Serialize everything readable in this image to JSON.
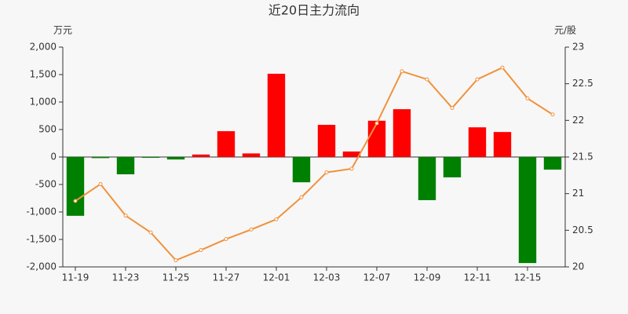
{
  "chart_data": {
    "type": "bar-line",
    "title": "近20日主力流向",
    "y_label": "万元",
    "y2_label": "元/股",
    "categories": [
      "11-19",
      null,
      "11-23",
      null,
      "11-25",
      null,
      "11-27",
      null,
      "12-01",
      null,
      "12-03",
      null,
      "12-07",
      null,
      "12-09",
      null,
      "12-11",
      null,
      "12-15",
      null
    ],
    "series": [
      {
        "type": "bar",
        "positive_color": "#ff0000",
        "negative_color": "#008000",
        "values": [
          -1070,
          -20,
          -315,
          -15,
          -45,
          45,
          470,
          65,
          1515,
          -460,
          585,
          100,
          660,
          870,
          -785,
          -370,
          540,
          455,
          -1930,
          -230
        ]
      },
      {
        "type": "line",
        "axis": "y2",
        "color": "#f0923c",
        "values": [
          20.9,
          21.13,
          20.7,
          20.47,
          20.09,
          20.23,
          20.38,
          20.51,
          20.65,
          20.95,
          21.29,
          21.34,
          21.96,
          22.67,
          22.56,
          22.17,
          22.56,
          22.72,
          22.3,
          22.08
        ]
      }
    ],
    "ylim": [
      -2000,
      2000
    ],
    "yticks": [
      {
        "value": -2000,
        "label": "-2,000"
      },
      {
        "value": -1500,
        "label": "-1,500"
      },
      {
        "value": -1000,
        "label": "-1,000"
      },
      -500,
      0,
      500,
      {
        "value": 1000,
        "label": "1,000"
      },
      {
        "value": 1500,
        "label": "1,500"
      },
      {
        "value": 2000,
        "label": "2,000"
      }
    ],
    "y2lim": [
      20,
      23
    ],
    "y2ticks": [
      20,
      20.5,
      21,
      21.5,
      22,
      22.5,
      23
    ],
    "grid": false
  }
}
